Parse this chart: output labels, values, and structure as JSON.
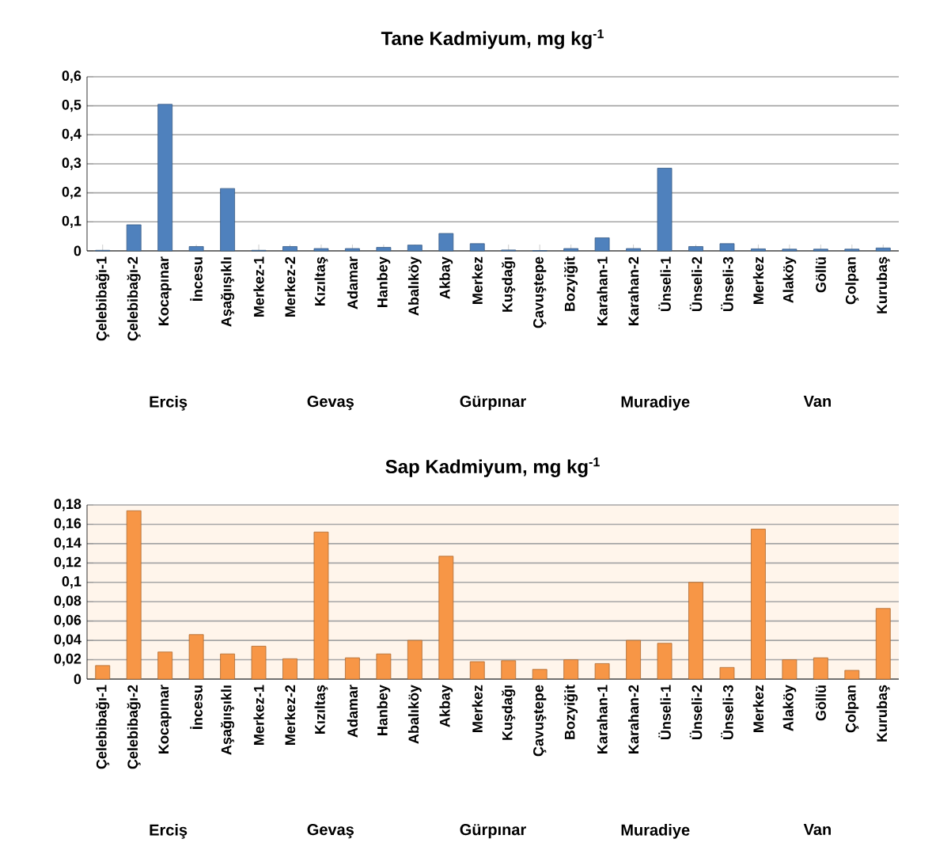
{
  "chart_data": [
    {
      "type": "bar",
      "title": "Tane Kadmiyum, mg kg$^{-1}$",
      "color": "#4f81bd",
      "grid": "y",
      "categories": [
        "Çelebibağı-1",
        "Çelebibağı-2",
        "Kocapınar",
        "İncesu",
        "Aşağıışıklı",
        "Merkez-1",
        "Merkez-2",
        "Kızıltaş",
        "Adamar",
        "Hanbey",
        "Abalıköy",
        "Akbay",
        "Merkez",
        "Kuşdağı",
        "Çavuştepe",
        "Bozyiğit",
        "Karahan-1",
        "Karahan-2",
        "Ünseli-1",
        "Ünseli-2",
        "Ünseli-3",
        "Merkez",
        "Alaköy",
        "Göllü",
        "Çolpan",
        "Kurubaş"
      ],
      "values": [
        0.002,
        0.09,
        0.505,
        0.015,
        0.215,
        0.002,
        0.015,
        0.008,
        0.008,
        0.012,
        0.02,
        0.06,
        0.025,
        0.003,
        0.001,
        0.008,
        0.045,
        0.008,
        0.285,
        0.015,
        0.025,
        0.007,
        0.006,
        0.006,
        0.006,
        0.01
      ],
      "ylim": [
        0,
        0.6
      ],
      "yticks": [
        0,
        {
          "value": 0.1,
          "label": "0,1"
        },
        {
          "value": 0.2,
          "label": "0,2"
        },
        {
          "value": 0.3,
          "label": "0,3"
        },
        {
          "value": 0.4,
          "label": "0,4"
        },
        {
          "value": 0.5,
          "label": "0,5"
        },
        {
          "value": 0.6,
          "label": "0,6"
        }
      ],
      "annotations": [
        "Erciş",
        "Gevaş",
        "Gürpınar",
        "Muradiye",
        "Van"
      ]
    },
    {
      "type": "bar",
      "title": "Sap Kadmiyum, mg kg$^{-1}$",
      "color": "#f79646",
      "grid": "y",
      "categories": [
        "Çelebibağı-1",
        "Çelebibağı-2",
        "Kocapınar",
        "İncesu",
        "Aşağıışıklı",
        "Merkez-1",
        "Merkez-2",
        "Kızıltaş",
        "Adamar",
        "Hanbey",
        "Abalıköy",
        "Akbay",
        "Merkez",
        "Kuşdağı",
        "Çavuştepe",
        "Bozyiğit",
        "Karahan-1",
        "Karahan-2",
        "Ünseli-1",
        "Ünseli-2",
        "Ünseli-3",
        "Merkez",
        "Alaköy",
        "Göllü",
        "Çolpan",
        "Kurubaş"
      ],
      "values": [
        0.014,
        0.174,
        0.028,
        0.046,
        0.026,
        0.034,
        0.021,
        0.152,
        0.022,
        0.026,
        0.04,
        0.127,
        0.018,
        0.019,
        0.01,
        0.02,
        0.016,
        0.04,
        0.037,
        0.1,
        0.012,
        0.155,
        0.02,
        0.022,
        0.009,
        0.073
      ],
      "ylim": [
        0,
        0.18
      ],
      "yticks": [
        0,
        {
          "value": 0.02,
          "label": "0,02"
        },
        {
          "value": 0.04,
          "label": "0,04"
        },
        {
          "value": 0.06,
          "label": "0,06"
        },
        {
          "value": 0.08,
          "label": "0,08"
        },
        {
          "value": 0.1,
          "label": "0,1"
        },
        {
          "value": 0.12,
          "label": "0,12"
        },
        {
          "value": 0.14,
          "label": "0,14"
        },
        {
          "value": 0.16,
          "label": "0,16"
        },
        {
          "value": 0.18,
          "label": "0,18"
        }
      ],
      "annotations": [
        "Erciş",
        "Gevaş",
        "Gürpınar",
        "Muradiye",
        "Van"
      ]
    }
  ]
}
